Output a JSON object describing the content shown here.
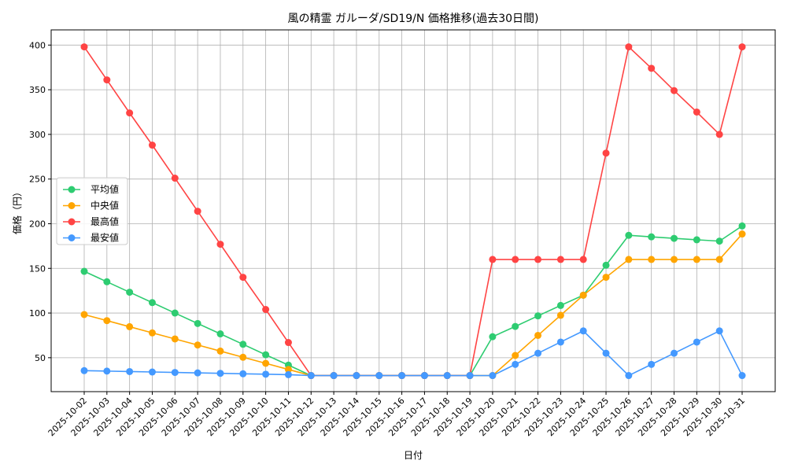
{
  "chart_data": {
    "type": "line",
    "title": "風の精霊 ガルーダ/SD19/N 価格推移(過去30日間)",
    "xlabel": "日付",
    "ylabel": "価格（円）",
    "ylim": [
      12,
      417
    ],
    "yticks": [
      50,
      100,
      150,
      200,
      250,
      300,
      350,
      400
    ],
    "grid": true,
    "legend_position": "center-left",
    "x": [
      "2025-10-02",
      "2025-10-03",
      "2025-10-04",
      "2025-10-05",
      "2025-10-06",
      "2025-10-07",
      "2025-10-08",
      "2025-10-09",
      "2025-10-10",
      "2025-10-11",
      "2025-10-12",
      "2025-10-13",
      "2025-10-14",
      "2025-10-15",
      "2025-10-16",
      "2025-10-17",
      "2025-10-18",
      "2025-10-19",
      "2025-10-20",
      "2025-10-21",
      "2025-10-22",
      "2025-10-23",
      "2025-10-24",
      "2025-10-25",
      "2025-10-26",
      "2025-10-27",
      "2025-10-28",
      "2025-10-29",
      "2025-10-30",
      "2025-10-31"
    ],
    "series": [
      {
        "name": "平均値",
        "color": "#2ecc71",
        "values": [
          146.7,
          135,
          123.3,
          111.7,
          100,
          88.3,
          76.7,
          65,
          53.3,
          41.7,
          30,
          30,
          30,
          30,
          30,
          30,
          30,
          30,
          73.5,
          85,
          96.8,
          108.5,
          120,
          153.5,
          187,
          185.3,
          183.6,
          182,
          180.5,
          197.5
        ]
      },
      {
        "name": "中央値",
        "color": "#ffa500",
        "values": [
          98.3,
          91.5,
          84.7,
          77.8,
          71,
          64.2,
          57.4,
          50.5,
          43.7,
          36.8,
          30,
          30,
          30,
          30,
          30,
          30,
          30,
          30,
          30,
          52.5,
          75,
          97.5,
          120,
          140,
          160,
          160,
          160,
          160,
          160,
          188.5
        ]
      },
      {
        "name": "最高値",
        "color": "#ff4444",
        "values": [
          398,
          361,
          324,
          288,
          251,
          214,
          177,
          140,
          104,
          67,
          30,
          30,
          30,
          30,
          30,
          30,
          30,
          30,
          160,
          160,
          160,
          160,
          160,
          279,
          398,
          374,
          349,
          325,
          300,
          398
        ]
      },
      {
        "name": "最安値",
        "color": "#4499ff",
        "values": [
          35.5,
          35,
          34.5,
          34,
          33.5,
          33,
          32.5,
          32,
          31.5,
          31,
          30,
          30,
          30,
          30,
          30,
          30,
          30,
          30,
          30,
          42.5,
          55,
          67.5,
          80,
          55,
          30,
          42.5,
          55,
          67.5,
          80,
          30
        ]
      }
    ]
  }
}
